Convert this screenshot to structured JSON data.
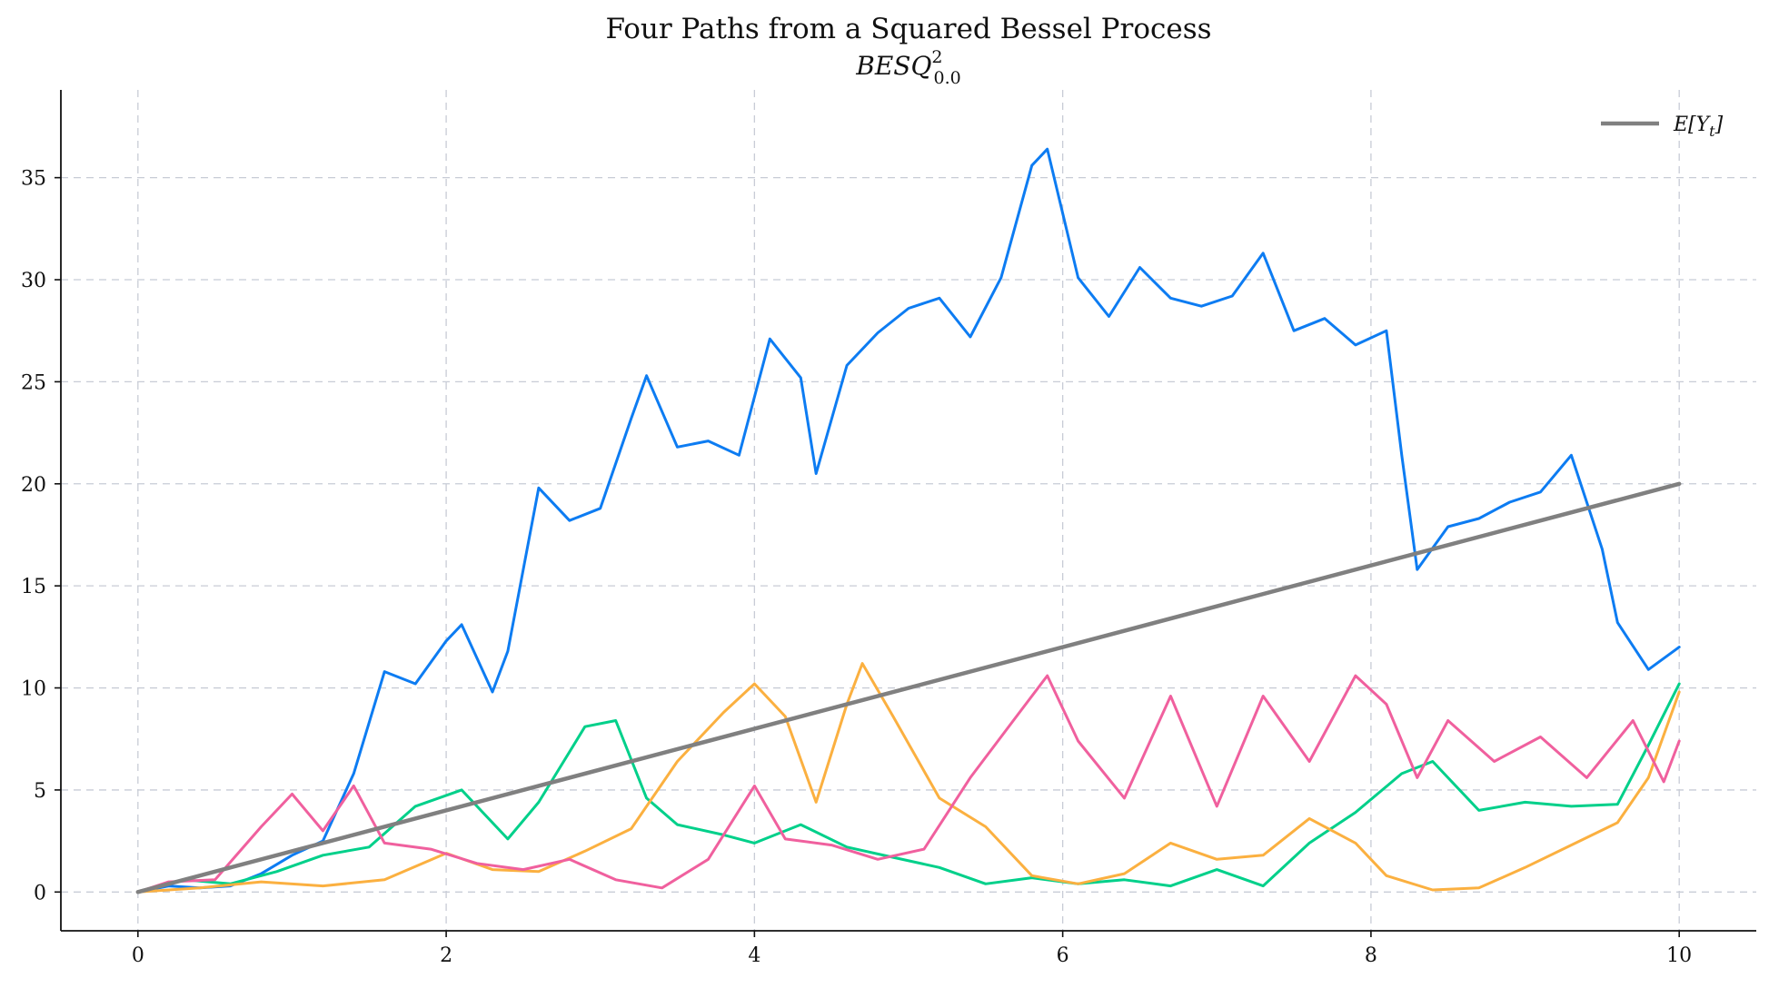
{
  "chart_data": {
    "type": "line",
    "title": "Four Paths from a Squared Bessel Process",
    "subtitle_base": "BESQ",
    "subtitle_sup": "2",
    "subtitle_sub": "0.0",
    "xlim": [
      -0.5,
      10.5
    ],
    "ylim": [
      -1.9,
      39.3
    ],
    "xticks": [
      0,
      2,
      4,
      6,
      8,
      10
    ],
    "yticks": [
      0,
      5,
      10,
      15,
      20,
      25,
      30,
      35
    ],
    "grid": true,
    "legend": {
      "position": "top-right",
      "entry": "E[Y_t]",
      "entry_base": "E[Y",
      "entry_sub": "t",
      "entry_close": "]"
    },
    "series": [
      {
        "color": "#0d7cf2",
        "x": [
          0,
          0.2,
          0.4,
          0.6,
          0.8,
          1.0,
          1.2,
          1.4,
          1.6,
          1.8,
          2.0,
          2.1,
          2.3,
          2.4,
          2.6,
          2.8,
          3.0,
          3.2,
          3.3,
          3.5,
          3.7,
          3.9,
          4.1,
          4.3,
          4.4,
          4.6,
          4.8,
          5.0,
          5.2,
          5.4,
          5.6,
          5.8,
          5.9,
          6.1,
          6.3,
          6.5,
          6.7,
          6.9,
          7.1,
          7.3,
          7.5,
          7.7,
          7.9,
          8.1,
          8.2,
          8.3,
          8.5,
          8.7,
          8.9,
          9.1,
          9.3,
          9.5,
          9.6,
          9.8,
          10.0
        ],
        "y": [
          0,
          0.3,
          0.2,
          0.3,
          0.9,
          1.8,
          2.5,
          5.8,
          10.8,
          10.2,
          12.3,
          13.1,
          9.8,
          11.8,
          19.8,
          18.2,
          18.8,
          23.2,
          25.3,
          21.8,
          22.1,
          21.4,
          27.1,
          25.2,
          20.5,
          25.8,
          27.4,
          28.6,
          29.1,
          27.2,
          30.1,
          35.6,
          36.4,
          30.1,
          28.2,
          30.6,
          29.1,
          28.7,
          29.2,
          31.3,
          27.5,
          28.1,
          26.8,
          27.5,
          21.4,
          15.8,
          17.9,
          18.3,
          19.1,
          19.6,
          21.4,
          16.8,
          13.2,
          10.9,
          12.0
        ]
      },
      {
        "color": "#00d08a",
        "x": [
          0,
          0.3,
          0.6,
          0.9,
          1.2,
          1.5,
          1.8,
          2.1,
          2.4,
          2.6,
          2.9,
          3.1,
          3.3,
          3.5,
          3.8,
          4.0,
          4.3,
          4.6,
          4.9,
          5.2,
          5.5,
          5.8,
          6.1,
          6.4,
          6.7,
          7.0,
          7.3,
          7.6,
          7.9,
          8.2,
          8.4,
          8.7,
          9.0,
          9.3,
          9.6,
          9.8,
          10.0
        ],
        "y": [
          0,
          0.6,
          0.4,
          1.0,
          1.8,
          2.2,
          4.2,
          5.0,
          2.6,
          4.4,
          8.1,
          8.4,
          4.6,
          3.3,
          2.8,
          2.4,
          3.3,
          2.2,
          1.7,
          1.2,
          0.4,
          0.7,
          0.4,
          0.6,
          0.3,
          1.1,
          0.3,
          2.4,
          3.9,
          5.8,
          6.4,
          4.0,
          4.4,
          4.2,
          4.3,
          7.2,
          10.2
        ]
      },
      {
        "color": "#fbb040",
        "x": [
          0,
          0.4,
          0.8,
          1.2,
          1.6,
          2.0,
          2.3,
          2.6,
          2.9,
          3.2,
          3.5,
          3.8,
          4.0,
          4.2,
          4.4,
          4.6,
          4.7,
          4.9,
          5.2,
          5.5,
          5.8,
          6.1,
          6.4,
          6.7,
          7.0,
          7.3,
          7.6,
          7.9,
          8.1,
          8.4,
          8.7,
          9.0,
          9.3,
          9.6,
          9.8,
          10.0
        ],
        "y": [
          0,
          0.2,
          0.5,
          0.3,
          0.6,
          1.9,
          1.1,
          1.0,
          2.0,
          3.1,
          6.4,
          8.8,
          10.2,
          8.6,
          4.4,
          9.2,
          11.2,
          8.6,
          4.6,
          3.2,
          0.8,
          0.4,
          0.9,
          2.4,
          1.6,
          1.8,
          3.6,
          2.4,
          0.8,
          0.1,
          0.2,
          1.2,
          2.3,
          3.4,
          5.6,
          9.8
        ]
      },
      {
        "color": "#f0609e",
        "x": [
          0,
          0.2,
          0.5,
          0.8,
          1.0,
          1.2,
          1.4,
          1.6,
          1.9,
          2.2,
          2.5,
          2.8,
          3.1,
          3.4,
          3.7,
          4.0,
          4.2,
          4.5,
          4.8,
          5.1,
          5.4,
          5.7,
          5.9,
          6.1,
          6.4,
          6.7,
          7.0,
          7.3,
          7.6,
          7.9,
          8.1,
          8.3,
          8.5,
          8.8,
          9.1,
          9.4,
          9.7,
          9.9,
          10.0
        ],
        "y": [
          0,
          0.5,
          0.6,
          3.2,
          4.8,
          3.0,
          5.2,
          2.4,
          2.1,
          1.4,
          1.1,
          1.6,
          0.6,
          0.2,
          1.6,
          5.2,
          2.6,
          2.3,
          1.6,
          2.1,
          5.6,
          8.6,
          10.6,
          7.4,
          4.6,
          9.6,
          4.2,
          9.6,
          6.4,
          10.6,
          9.2,
          5.6,
          8.4,
          6.4,
          7.6,
          5.6,
          8.4,
          5.4,
          7.4
        ]
      },
      {
        "color": "#808080",
        "x": [
          0,
          10
        ],
        "y": [
          0,
          20
        ]
      }
    ]
  }
}
